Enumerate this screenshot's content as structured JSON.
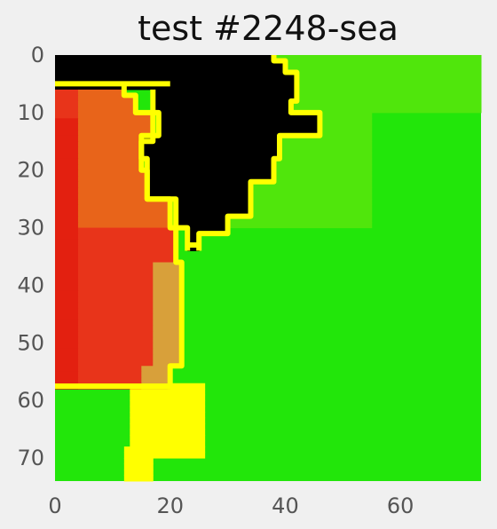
{
  "chart_data": {
    "type": "heatmap",
    "title": "test #2248-sea",
    "xlabel": "",
    "ylabel": "",
    "xlim": [
      0,
      74
    ],
    "ylim": [
      74,
      0
    ],
    "xticks": [
      "0",
      "20",
      "40",
      "60"
    ],
    "yticks": [
      "0",
      "10",
      "20",
      "30",
      "40",
      "50",
      "60",
      "70"
    ],
    "grid": false,
    "colors": {
      "black": "#000000",
      "yellow": "#ffff00",
      "green": "#22e60a",
      "lime": "#50e60c",
      "red_dark": "#e32010",
      "red": "#e8341a",
      "orange": "#e8641a",
      "tan": "#d8a03a"
    }
  }
}
